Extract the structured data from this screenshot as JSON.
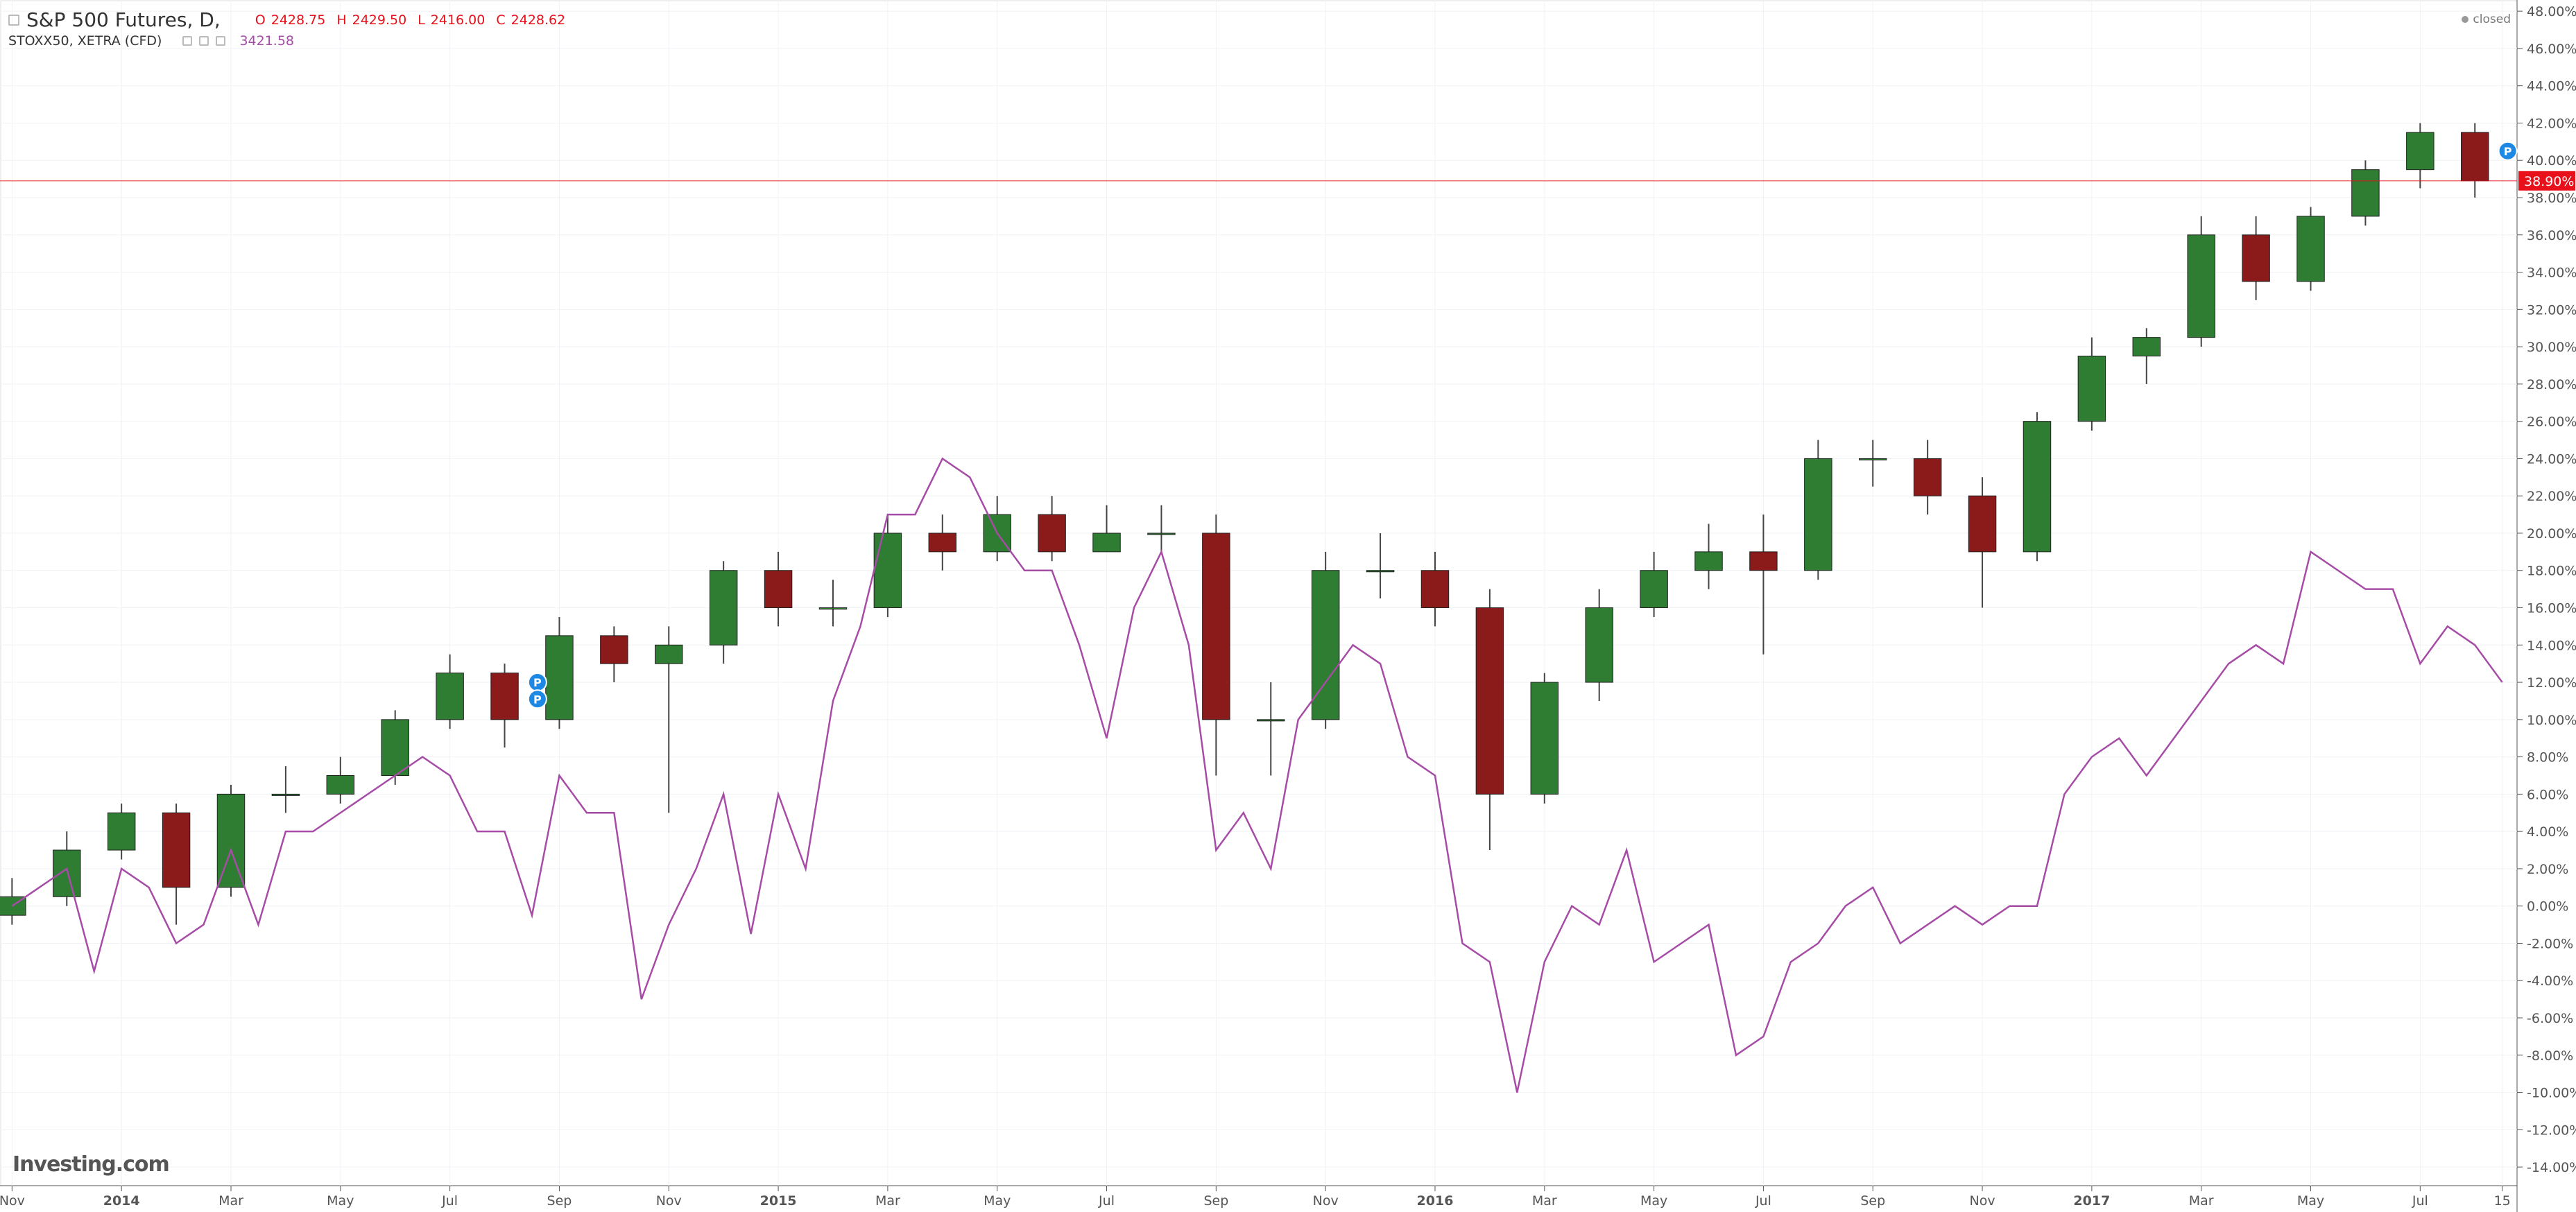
{
  "chart_data": {
    "type": "candlestick",
    "series": [
      {
        "name": "S&P 500 Futures, D,",
        "type": "candlestick",
        "up_color": "#2e7d32",
        "down_color": "#8b1a1a",
        "quote": [
          {
            "key": "O",
            "value": "2428.75"
          },
          {
            "key": "H",
            "value": "2429.50"
          },
          {
            "key": "L",
            "value": "2416.00"
          },
          {
            "key": "C",
            "value": "2428.62"
          }
        ],
        "x": [
          0,
          1,
          2,
          3,
          4,
          5,
          6,
          7,
          8,
          9,
          10,
          11,
          12,
          13,
          14,
          15,
          16,
          17,
          18,
          19,
          20,
          21,
          22,
          23,
          24,
          25,
          26,
          27,
          28,
          29,
          30,
          31,
          32,
          33,
          34,
          35,
          36,
          37,
          38,
          39,
          40,
          41,
          42,
          43,
          44,
          45
        ],
        "open": [
          -0.5,
          0.5,
          3,
          5,
          1,
          6,
          6,
          7,
          10,
          12.5,
          10,
          14.5,
          13,
          14,
          18,
          16,
          16,
          20,
          19,
          21,
          19,
          20,
          20,
          10,
          10,
          18,
          18,
          16,
          6,
          12,
          16,
          18,
          19,
          18,
          24,
          24,
          22,
          19,
          26,
          29.5,
          30.5,
          36,
          33.5,
          37,
          39.5,
          41.5
        ],
        "high": [
          1.5,
          4,
          5.5,
          5.5,
          6.5,
          7.5,
          8,
          10.5,
          13.5,
          13,
          15.5,
          15,
          15,
          18.5,
          19,
          17.5,
          21,
          21,
          22,
          22,
          21.5,
          21.5,
          21,
          12,
          19,
          20,
          19,
          17,
          12.5,
          17,
          19,
          20.5,
          21,
          25,
          25,
          25,
          23,
          26.5,
          30.5,
          31,
          37,
          37,
          37.5,
          40,
          42,
          42
        ],
        "low": [
          -1,
          0,
          2.5,
          -1,
          0.5,
          5,
          5.5,
          6.5,
          9.5,
          8.5,
          9.5,
          12,
          5,
          13,
          15,
          15,
          15.5,
          18,
          18.5,
          18.5,
          19,
          19,
          7,
          7,
          9.5,
          16.5,
          15,
          3,
          5.5,
          11,
          15.5,
          17,
          13.5,
          17.5,
          22.5,
          21,
          16,
          18.5,
          25.5,
          28,
          30,
          32.5,
          33,
          36.5,
          38.5,
          38
        ],
        "close": [
          0.5,
          3,
          5,
          1,
          6,
          6,
          7,
          10,
          12.5,
          10,
          14.5,
          13,
          14,
          18,
          16,
          16,
          20,
          19,
          21,
          19,
          20,
          20,
          10,
          10,
          18,
          18,
          16,
          6,
          12,
          16,
          18,
          19,
          18,
          24,
          24,
          22,
          19,
          26,
          29.5,
          30.5,
          36,
          33.5,
          37,
          39.5,
          41.5,
          38.9
        ]
      },
      {
        "name": "STOXX50, XETRA (CFD)",
        "type": "line",
        "color": "#a64ca6",
        "last": "3421.58",
        "x": [
          0,
          0.5,
          1,
          1.5,
          2,
          2.5,
          3,
          3.5,
          4,
          4.5,
          5,
          5.5,
          6,
          6.5,
          7,
          7.5,
          8,
          8.5,
          9,
          9.5,
          10,
          10.5,
          11,
          11.5,
          12,
          12.5,
          13,
          13.5,
          14,
          14.5,
          15,
          15.5,
          16,
          16.5,
          17,
          17.5,
          18,
          18.5,
          19,
          19.5,
          20,
          20.5,
          21,
          21.5,
          22,
          22.5,
          23,
          23.5,
          24,
          24.5,
          25,
          25.5,
          26,
          26.5,
          27,
          27.5,
          28,
          28.5,
          29,
          29.5,
          30,
          30.5,
          31,
          31.5,
          32,
          32.5,
          33,
          33.5,
          34,
          34.5,
          35,
          35.5,
          36,
          36.5,
          37,
          37.5,
          38,
          38.5,
          39,
          39.5,
          40,
          40.5,
          41,
          41.5,
          42,
          42.5,
          43,
          43.5,
          44,
          44.5,
          45,
          45.5
        ],
        "values": [
          0,
          1,
          2,
          -3.5,
          2,
          1,
          -2,
          -1,
          3,
          -1,
          4,
          4,
          5,
          6,
          7,
          8,
          7,
          4,
          4,
          -0.5,
          7,
          5,
          5,
          -5,
          -1,
          2,
          6,
          -1.5,
          6,
          2,
          11,
          15,
          21,
          21,
          24,
          23,
          20,
          18,
          18,
          14,
          9,
          16,
          19,
          14,
          3,
          5,
          2,
          10,
          12,
          14,
          13,
          8,
          7,
          -2,
          -3,
          -10,
          -3,
          0,
          -1,
          3,
          -3,
          -2,
          -1,
          -8,
          -7,
          -3,
          -2,
          0,
          1,
          -2,
          -1,
          0,
          -1,
          0,
          0,
          6,
          8,
          9,
          7,
          9,
          11,
          13,
          14,
          13,
          19,
          18,
          17,
          17,
          13,
          15,
          14,
          12
        ]
      }
    ],
    "xlim": [
      -0.22,
      45.77
    ],
    "xticks": [
      {
        "value": 0,
        "label": "Nov"
      },
      {
        "value": 2,
        "label": "2014"
      },
      {
        "value": 4,
        "label": "Mar"
      },
      {
        "value": 6,
        "label": "May"
      },
      {
        "value": 8,
        "label": "Jul"
      },
      {
        "value": 10,
        "label": "Sep"
      },
      {
        "value": 12,
        "label": "Nov"
      },
      {
        "value": 14,
        "label": "2015"
      },
      {
        "value": 16,
        "label": "Mar"
      },
      {
        "value": 18,
        "label": "May"
      },
      {
        "value": 20,
        "label": "Jul"
      },
      {
        "value": 22,
        "label": "Sep"
      },
      {
        "value": 24,
        "label": "Nov"
      },
      {
        "value": 26,
        "label": "2016"
      },
      {
        "value": 28,
        "label": "Mar"
      },
      {
        "value": 30,
        "label": "May"
      },
      {
        "value": 32,
        "label": "Jul"
      },
      {
        "value": 34,
        "label": "Sep"
      },
      {
        "value": 36,
        "label": "Nov"
      },
      {
        "value": 38,
        "label": "2017"
      },
      {
        "value": 40,
        "label": "Mar"
      },
      {
        "value": 42,
        "label": "May"
      },
      {
        "value": 44,
        "label": "Jul"
      },
      {
        "value": 45.5,
        "label": "15"
      }
    ],
    "ylim": [
      -15,
      48.6
    ],
    "yticks": [
      {
        "value": -14,
        "label": "-14.00%"
      },
      {
        "value": -12,
        "label": "-12.00%"
      },
      {
        "value": -10,
        "label": "-10.00%"
      },
      {
        "value": -8,
        "label": "-8.00%"
      },
      {
        "value": -6,
        "label": "-6.00%"
      },
      {
        "value": -4,
        "label": "-4.00%"
      },
      {
        "value": -2,
        "label": "-2.00%"
      },
      {
        "value": 0,
        "label": "0.00%"
      },
      {
        "value": 2,
        "label": "2.00%"
      },
      {
        "value": 4,
        "label": "4.00%"
      },
      {
        "value": 6,
        "label": "6.00%"
      },
      {
        "value": 8,
        "label": "8.00%"
      },
      {
        "value": 10,
        "label": "10.00%"
      },
      {
        "value": 12,
        "label": "12.00%"
      },
      {
        "value": 14,
        "label": "14.00%"
      },
      {
        "value": 16,
        "label": "16.00%"
      },
      {
        "value": 18,
        "label": "18.00%"
      },
      {
        "value": 20,
        "label": "20.00%"
      },
      {
        "value": 22,
        "label": "22.00%"
      },
      {
        "value": 24,
        "label": "24.00%"
      },
      {
        "value": 26,
        "label": "26.00%"
      },
      {
        "value": 28,
        "label": "28.00%"
      },
      {
        "value": 30,
        "label": "30.00%"
      },
      {
        "value": 32,
        "label": "32.00%"
      },
      {
        "value": 34,
        "label": "34.00%"
      },
      {
        "value": 36,
        "label": "36.00%"
      },
      {
        "value": 38,
        "label": "38.00%"
      },
      {
        "value": 40,
        "label": "40.00%"
      },
      {
        "value": 42,
        "label": "42.00%"
      },
      {
        "value": 44,
        "label": "44.00%"
      },
      {
        "value": 46,
        "label": "46.00%"
      },
      {
        "value": 48,
        "label": "48.00%"
      }
    ],
    "grid": true,
    "price_line": {
      "value": 38.9,
      "label": "38.90%",
      "color": "#e8101a"
    },
    "events": {
      "label": "P",
      "color": "#1e88e5",
      "x": [
        9.6,
        9.6,
        45.6
      ],
      "y": [
        12,
        11.1,
        40.5
      ]
    },
    "status": "closed",
    "watermark": "Investing.com"
  }
}
